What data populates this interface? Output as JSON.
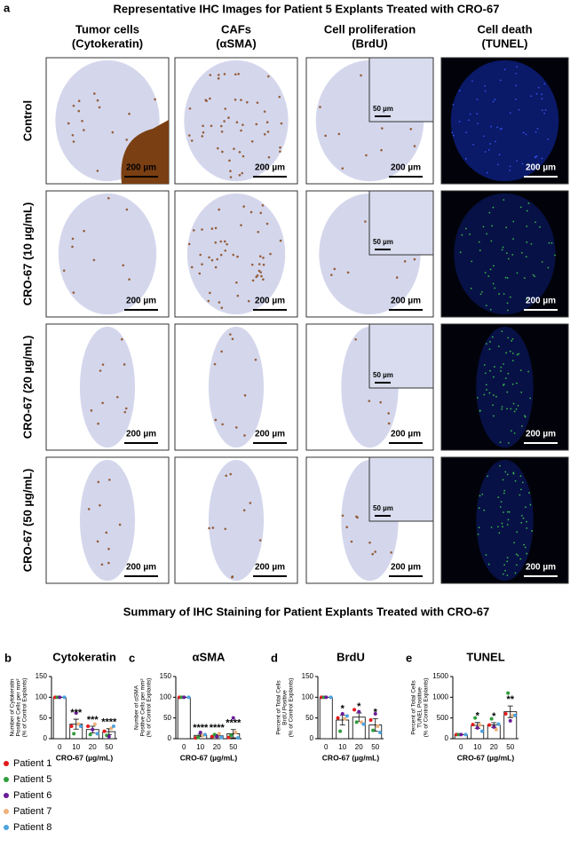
{
  "panel_a": {
    "label": "a",
    "title": "Representative IHC Images for Patient 5 Explants Treated with CRO-67",
    "columns": [
      [
        "Tumor cells",
        "(Cytokeratin)"
      ],
      [
        "CAFs",
        "(αSMA)"
      ],
      [
        "Cell proliferation",
        "(BrdU)"
      ],
      [
        "Cell death",
        "(TUNEL)"
      ]
    ],
    "rows": [
      "Control",
      "CRO-67 (10 µg/mL)",
      "CRO-67 (20 µg/mL)",
      "CRO-67 (50 µg/mL)"
    ],
    "scale_bar": "200 µm",
    "inset_scale_bar": "50 µm"
  },
  "summary_title": "Summary of IHC Staining for Patient Explants Treated with CRO-67",
  "patients": [
    {
      "name": "Patient 1",
      "color": "#e41a1c"
    },
    {
      "name": "Patient 5",
      "color": "#2e9d3a"
    },
    {
      "name": "Patient 6",
      "color": "#6a1b9a"
    },
    {
      "name": "Patient 7",
      "color": "#f0b27a"
    },
    {
      "name": "Patient 8",
      "color": "#4ea3e0"
    }
  ],
  "chart_data": [
    {
      "type": "bar",
      "panel": "b",
      "title": "Cytokeratin",
      "y_label": [
        "Number of Cytokeratin",
        "Positive Cells per mm²",
        "(% of Control Explants)"
      ],
      "x_label": "CRO-67 (µg/mL)",
      "categories": [
        "0",
        "10",
        "20",
        "50"
      ],
      "values": [
        100,
        35,
        22,
        17
      ],
      "errors": [
        0,
        12,
        8,
        7
      ],
      "significance": [
        null,
        "***",
        "***",
        "****"
      ],
      "ylim": [
        0,
        150
      ],
      "yticks": [
        0,
        50,
        100,
        150
      ],
      "points": [
        [
          100,
          30,
          30,
          18
        ],
        [
          100,
          12,
          10,
          8
        ],
        [
          100,
          62,
          22,
          5
        ],
        [
          null,
          35,
          35,
          25
        ],
        [
          100,
          30,
          12,
          30
        ]
      ]
    },
    {
      "type": "bar",
      "panel": "c",
      "title": "αSMA",
      "y_label": [
        "Number of αSMA",
        "Positive Cells per mm²",
        "(% of Control Explants)"
      ],
      "x_label": "CRO-67 (µg/mL)",
      "categories": [
        "0",
        "10",
        "20",
        "50"
      ],
      "values": [
        100,
        8,
        7,
        12
      ],
      "errors": [
        0,
        3,
        3,
        10
      ],
      "significance": [
        null,
        "****",
        "****",
        "****"
      ],
      "ylim": [
        0,
        150
      ],
      "yticks": [
        0,
        50,
        100,
        150
      ],
      "points": [
        [
          100,
          2,
          5,
          3
        ],
        [
          100,
          3,
          10,
          8
        ],
        [
          100,
          15,
          5,
          50
        ],
        [
          null,
          8,
          12,
          15
        ],
        [
          100,
          10,
          3,
          2
        ]
      ]
    },
    {
      "type": "bar",
      "panel": "d",
      "title": "BrdU",
      "y_label": [
        "Percent of Total Cells",
        "BrdU Positive",
        "(% of Control Explants)"
      ],
      "x_label": "CRO-67 (µg/mL)",
      "categories": [
        "0",
        "10",
        "20",
        "50"
      ],
      "values": [
        100,
        45,
        52,
        33
      ],
      "errors": [
        0,
        12,
        10,
        15
      ],
      "significance": [
        null,
        "*",
        "*",
        "*"
      ],
      "ylim": [
        0,
        150
      ],
      "yticks": [
        0,
        50,
        100,
        150
      ],
      "points": [
        [
          100,
          50,
          70,
          45
        ],
        [
          100,
          18,
          40,
          20
        ],
        [
          100,
          60,
          65,
          60
        ],
        [
          null,
          48,
          40,
          30
        ],
        [
          100,
          55,
          35,
          15
        ]
      ]
    },
    {
      "type": "bar",
      "panel": "e",
      "title": "TUNEL",
      "y_label": [
        "Percent of Total Cells",
        "TUNEL Positive",
        "(% of Control Explants)"
      ],
      "x_label": "CRO-67 (µg/mL)",
      "categories": [
        "0",
        "10",
        "20",
        "50"
      ],
      "values": [
        100,
        320,
        330,
        650
      ],
      "errors": [
        0,
        70,
        55,
        140
      ],
      "significance": [
        null,
        "*",
        "*",
        "**"
      ],
      "ylim": [
        0,
        1500
      ],
      "yticks": [
        0,
        500,
        1000,
        1500
      ],
      "points": [
        [
          100,
          340,
          330,
          600
        ],
        [
          100,
          500,
          480,
          1100
        ],
        [
          100,
          260,
          280,
          430
        ],
        [
          null,
          330,
          220,
          560
        ],
        [
          100,
          180,
          350,
          560
        ]
      ]
    }
  ]
}
